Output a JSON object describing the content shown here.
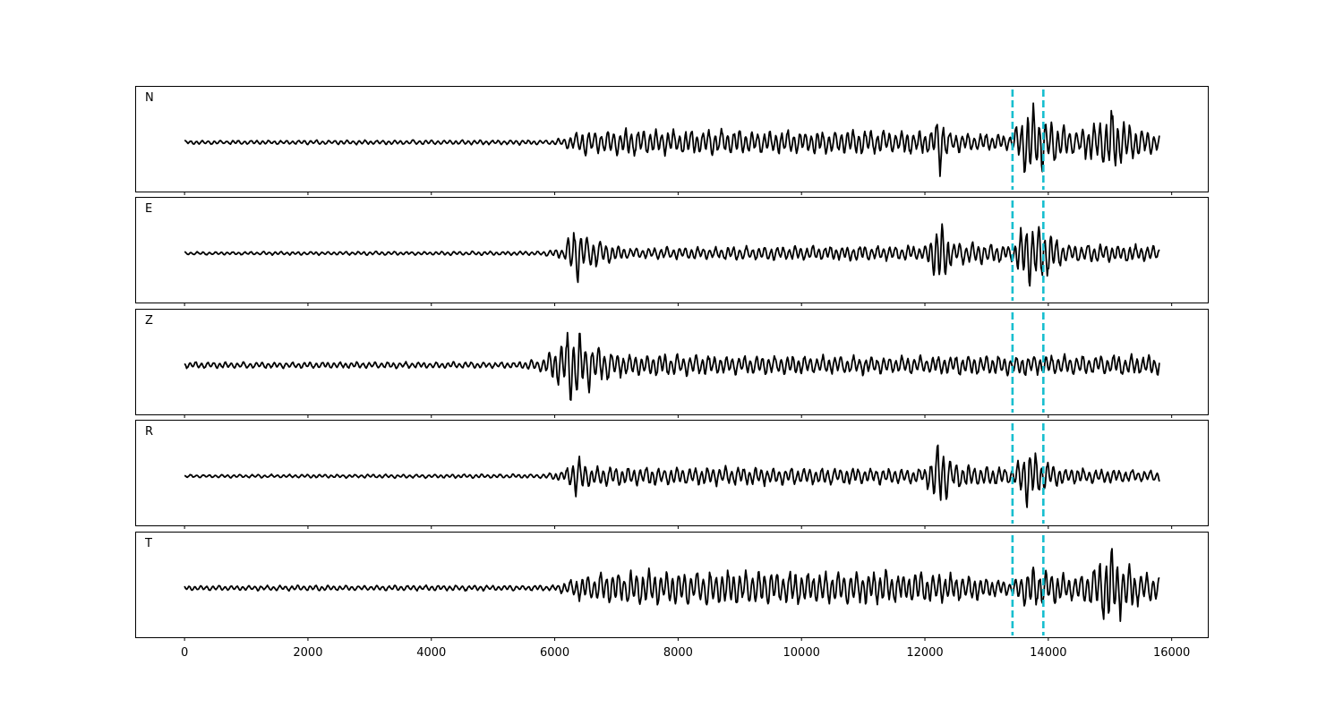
{
  "chart_data": {
    "type": "line",
    "title": "",
    "xlabel": "",
    "ylabel": "",
    "xlim": [
      -800,
      16600
    ],
    "x_ticks": [
      0,
      2000,
      4000,
      6000,
      8000,
      10000,
      12000,
      14000,
      16000
    ],
    "x_tick_labels": [
      "0",
      "2000",
      "4000",
      "6000",
      "8000",
      "10000",
      "12000",
      "14000",
      "16000"
    ],
    "y_ticks_shown": false,
    "grid": false,
    "trace_color": "#000000",
    "marker_color": "#17becf",
    "vertical_markers": [
      13420,
      13920
    ],
    "marker_style": "dashed",
    "panels": [
      {
        "label": "N",
        "x_range": [
          0,
          15800
        ],
        "ylim": [
          -1,
          1
        ],
        "envelope": [
          [
            0,
            0.05
          ],
          [
            6000,
            0.06
          ],
          [
            6300,
            0.2
          ],
          [
            6500,
            0.35
          ],
          [
            7100,
            0.33
          ],
          [
            12100,
            0.3
          ],
          [
            12250,
            0.85
          ],
          [
            12400,
            0.25
          ],
          [
            13400,
            0.2
          ],
          [
            13700,
            1.0
          ],
          [
            13900,
            0.75
          ],
          [
            14400,
            0.3
          ],
          [
            14800,
            0.55
          ],
          [
            15000,
            0.85
          ],
          [
            15300,
            0.45
          ],
          [
            15800,
            0.25
          ]
        ]
      },
      {
        "label": "E",
        "x_range": [
          0,
          15800
        ],
        "ylim": [
          -1,
          1
        ],
        "envelope": [
          [
            0,
            0.04
          ],
          [
            5800,
            0.05
          ],
          [
            6150,
            0.15
          ],
          [
            6300,
            0.8
          ],
          [
            6500,
            0.4
          ],
          [
            7200,
            0.15
          ],
          [
            12000,
            0.2
          ],
          [
            12250,
            0.95
          ],
          [
            12450,
            0.3
          ],
          [
            13400,
            0.2
          ],
          [
            13700,
            1.0
          ],
          [
            13900,
            0.7
          ],
          [
            14300,
            0.25
          ],
          [
            15800,
            0.2
          ]
        ]
      },
      {
        "label": "Z",
        "x_range": [
          0,
          15800
        ],
        "ylim": [
          -1,
          1
        ],
        "envelope": [
          [
            0,
            0.08
          ],
          [
            5300,
            0.08
          ],
          [
            5800,
            0.15
          ],
          [
            6300,
            1.0
          ],
          [
            6500,
            0.65
          ],
          [
            7000,
            0.3
          ],
          [
            8500,
            0.25
          ],
          [
            12000,
            0.22
          ],
          [
            12500,
            0.25
          ],
          [
            15800,
            0.25
          ]
        ]
      },
      {
        "label": "R",
        "x_range": [
          0,
          15800
        ],
        "ylim": [
          -1,
          1
        ],
        "envelope": [
          [
            0,
            0.04
          ],
          [
            5800,
            0.05
          ],
          [
            6150,
            0.15
          ],
          [
            6350,
            0.55
          ],
          [
            6600,
            0.25
          ],
          [
            12000,
            0.2
          ],
          [
            12250,
            0.95
          ],
          [
            12450,
            0.35
          ],
          [
            13400,
            0.2
          ],
          [
            13700,
            0.8
          ],
          [
            13900,
            0.45
          ],
          [
            14300,
            0.2
          ],
          [
            15800,
            0.15
          ]
        ]
      },
      {
        "label": "T",
        "x_range": [
          0,
          15800
        ],
        "ylim": [
          -1,
          1
        ],
        "envelope": [
          [
            0,
            0.06
          ],
          [
            6000,
            0.07
          ],
          [
            6400,
            0.3
          ],
          [
            7100,
            0.45
          ],
          [
            8600,
            0.45
          ],
          [
            12250,
            0.4
          ],
          [
            13400,
            0.2
          ],
          [
            13700,
            0.55
          ],
          [
            14400,
            0.3
          ],
          [
            14800,
            0.6
          ],
          [
            14950,
            1.0
          ],
          [
            15300,
            0.55
          ],
          [
            15800,
            0.3
          ]
        ]
      }
    ]
  }
}
